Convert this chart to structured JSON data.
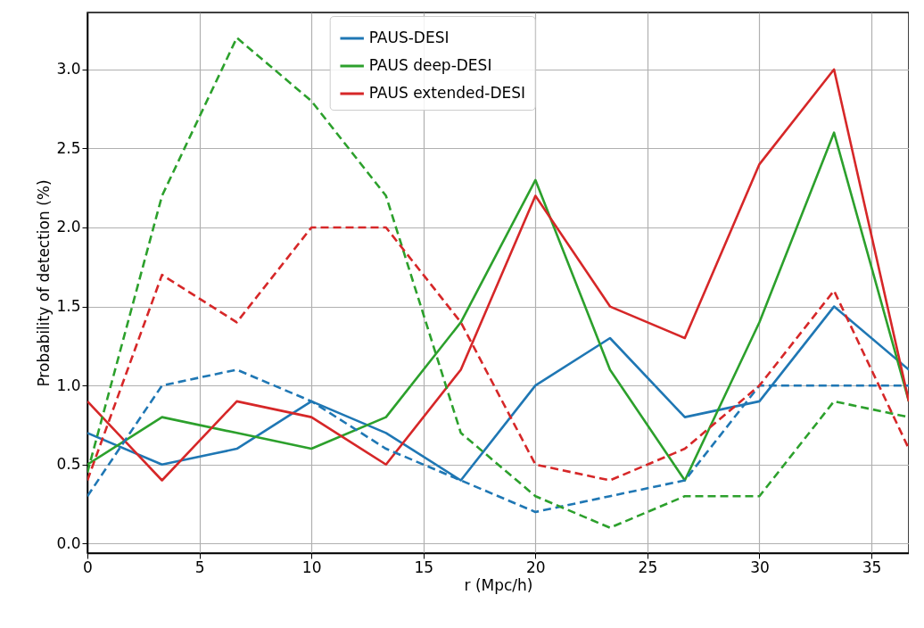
{
  "chart_data": {
    "type": "line",
    "xlabel": "r (Mpc/h)",
    "ylabel": "Probability of detection (%)",
    "x": [
      0,
      3.33,
      6.67,
      10,
      13.33,
      16.67,
      20,
      23.33,
      26.67,
      30,
      33.33,
      36.67
    ],
    "xlim": [
      0,
      36.67
    ],
    "xticks": [
      0,
      5,
      10,
      15,
      20,
      25,
      30,
      35
    ],
    "ylim": [
      -0.06,
      3.36
    ],
    "yticks": [
      {
        "value": 0,
        "label": "0.0"
      },
      0.5,
      {
        "value": 1,
        "label": "1.0"
      },
      1.5,
      {
        "value": 2,
        "label": "2.0"
      },
      2.5,
      {
        "value": 3,
        "label": "3.0"
      }
    ],
    "grid": true,
    "legend": "top",
    "marker": "none",
    "series": [
      {
        "name": "PAUS-DESI",
        "color": "#1f77b4",
        "line_style": "solid",
        "values": [
          0.7,
          0.5,
          0.6,
          0.9,
          0.7,
          0.4,
          1.0,
          1.3,
          0.8,
          0.9,
          1.5,
          1.1
        ]
      },
      {
        "name": "PAUS deep-DESI",
        "color": "#2ca02c",
        "line_style": "solid",
        "values": [
          0.5,
          0.8,
          0.7,
          0.6,
          0.8,
          1.4,
          2.3,
          1.1,
          0.4,
          1.4,
          2.6,
          0.9
        ]
      },
      {
        "name": "PAUS extended-DESI",
        "color": "#d62728",
        "line_style": "solid",
        "values": [
          0.9,
          0.4,
          0.9,
          0.8,
          0.5,
          1.1,
          2.2,
          1.5,
          1.3,
          2.4,
          3.0,
          0.9
        ]
      },
      {
        "color": "#1f77b4",
        "line_style": "dashed",
        "values": [
          0.3,
          1.0,
          1.1,
          0.9,
          0.6,
          0.4,
          0.2,
          0.3,
          0.4,
          1.0,
          1.0,
          1.0
        ]
      },
      {
        "color": "#2ca02c",
        "line_style": "dashed",
        "values": [
          0.45,
          2.2,
          3.2,
          2.8,
          2.2,
          0.7,
          0.3,
          0.1,
          0.3,
          0.3,
          0.9,
          0.8
        ]
      },
      {
        "color": "#d62728",
        "line_style": "dashed",
        "values": [
          0.4,
          1.7,
          1.4,
          2.0,
          2.0,
          1.4,
          0.5,
          0.4,
          0.6,
          1.0,
          1.6,
          0.6
        ]
      }
    ]
  }
}
